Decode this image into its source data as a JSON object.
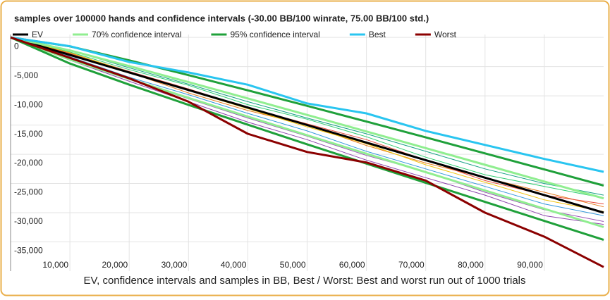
{
  "chart_data": {
    "type": "line",
    "title": "samples over 100000 hands and confidence intervals (-30.00 BB/100 winrate, 75.00 BB/100 std.)",
    "caption": "EV, confidence intervals and samples in BB, Best / Worst: Best and worst run out of 1000 trials",
    "x": [
      0,
      10000,
      20000,
      30000,
      40000,
      50000,
      60000,
      70000,
      80000,
      90000,
      100000
    ],
    "xlim": [
      0,
      100000
    ],
    "xticks": [
      {
        "value": 10000,
        "label": "10,000"
      },
      {
        "value": 20000,
        "label": "20,000"
      },
      {
        "value": 30000,
        "label": "30,000"
      },
      {
        "value": 40000,
        "label": "40,000"
      },
      {
        "value": 50000,
        "label": "50,000"
      },
      {
        "value": 60000,
        "label": "60,000"
      },
      {
        "value": 70000,
        "label": "70,000"
      },
      {
        "value": 80000,
        "label": "80,000"
      },
      {
        "value": 90000,
        "label": "90,000"
      }
    ],
    "ylim": [
      -40000,
      500
    ],
    "yticks": [
      0,
      {
        "value": -5000,
        "label": "-5,000"
      },
      {
        "value": -10000,
        "label": "-10,000"
      },
      {
        "value": -15000,
        "label": "-15,000"
      },
      {
        "value": -20000,
        "label": "-20,000"
      },
      {
        "value": -25000,
        "label": "-25,000"
      },
      {
        "value": -30000,
        "label": "-30,000"
      },
      {
        "value": -35000,
        "label": "-35,000"
      }
    ],
    "grid": true,
    "samples": [
      {
        "color": "#9b59b6",
        "values": [
          0,
          -3600,
          -7200,
          -10500,
          -13800,
          -16900,
          -20200,
          -23000,
          -26500,
          -29500,
          -31500
        ]
      },
      {
        "color": "#2ecc71",
        "values": [
          0,
          -2500,
          -5500,
          -8200,
          -11500,
          -14000,
          -17000,
          -20500,
          -23500,
          -25500,
          -27500
        ]
      },
      {
        "color": "#e67e22",
        "values": [
          0,
          -2800,
          -6000,
          -9500,
          -12500,
          -15000,
          -18500,
          -21500,
          -24000,
          -26500,
          -29000
        ]
      },
      {
        "color": "#3498db",
        "values": [
          0,
          -3300,
          -6800,
          -9800,
          -13000,
          -16000,
          -19500,
          -22500,
          -25500,
          -28500,
          -30500
        ]
      },
      {
        "color": "#e74c3c",
        "values": [
          0,
          -2700,
          -5800,
          -8800,
          -12000,
          -14800,
          -17500,
          -21000,
          -24500,
          -27000,
          -28500
        ]
      },
      {
        "color": "#16a085",
        "values": [
          0,
          -2200,
          -5200,
          -8000,
          -11000,
          -13800,
          -16500,
          -19500,
          -22500,
          -25000,
          -27000
        ]
      },
      {
        "color": "#8e44ad",
        "values": [
          0,
          -3900,
          -7500,
          -11000,
          -14500,
          -17500,
          -21000,
          -24000,
          -27000,
          -30500,
          -32000
        ]
      },
      {
        "color": "#f1c40f",
        "values": [
          0,
          -2600,
          -5900,
          -9100,
          -12200,
          -15300,
          -18200,
          -21800,
          -24800,
          -27800,
          -29800
        ]
      }
    ],
    "series": [
      {
        "name": "EV",
        "color": "#000000",
        "values": [
          0,
          -3000,
          -6000,
          -9000,
          -12000,
          -15000,
          -18000,
          -21000,
          -24000,
          -27000,
          -30000
        ]
      },
      {
        "name": "70% confidence interval",
        "color": "#90ee90",
        "upper": [
          0,
          -2223,
          -4901,
          -7654,
          -10446,
          -13263,
          -16097,
          -18944,
          -21803,
          -24669,
          -27543
        ],
        "lower": [
          0,
          -3777,
          -7099,
          -10346,
          -13554,
          -16737,
          -19903,
          -23056,
          -26197,
          -29331,
          -32457
        ]
      },
      {
        "name": "95% confidence interval",
        "color": "#1fa03a",
        "upper": [
          0,
          -1530,
          -3921,
          -6454,
          -9060,
          -11713,
          -14400,
          -17110,
          -19843,
          -22590,
          -25352
        ],
        "lower": [
          0,
          -4470,
          -8079,
          -11546,
          -14940,
          -18287,
          -21600,
          -24890,
          -28157,
          -31410,
          -34648
        ]
      },
      {
        "name": "Best",
        "color": "#29c5f0",
        "values": [
          0,
          -1500,
          -4200,
          -6000,
          -8100,
          -11300,
          -13000,
          -16000,
          -18400,
          -20800,
          -23000
        ]
      },
      {
        "name": "Worst",
        "color": "#8b0000",
        "values": [
          0,
          -3500,
          -7000,
          -11000,
          -16500,
          -19600,
          -21400,
          -24500,
          -30000,
          -34100,
          -39300
        ]
      }
    ]
  }
}
